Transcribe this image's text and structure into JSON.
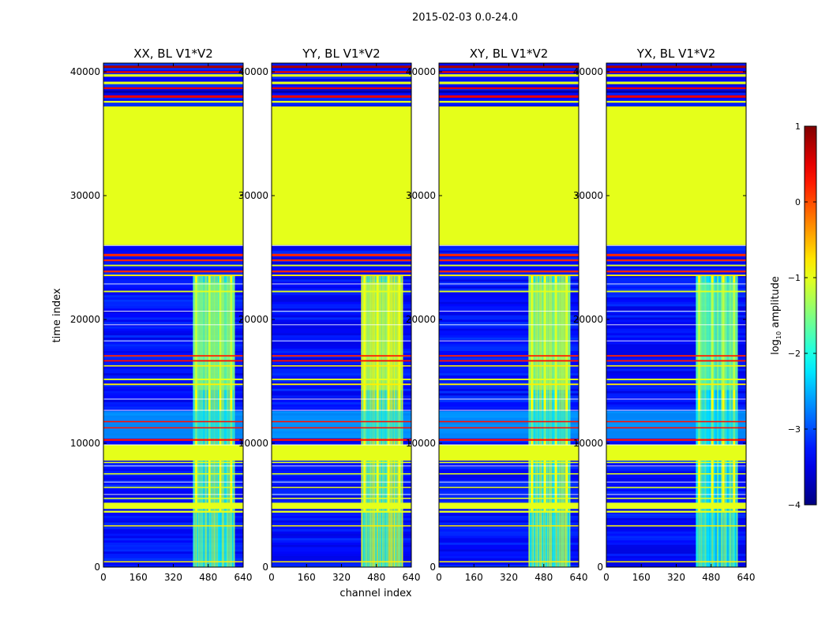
{
  "figure_title": "2015-02-03 0.0-24.0",
  "chart_data": {
    "type": "heatmap",
    "suptitle": "2015-02-03 0.0-24.0",
    "xlabel": "channel index",
    "ylabel": "time index",
    "xlim": [
      0,
      640
    ],
    "ylim": [
      0,
      40700
    ],
    "x_ticks": [
      0,
      160,
      320,
      480,
      640
    ],
    "y_ticks": [
      0,
      10000,
      20000,
      30000,
      40000
    ],
    "panels": [
      {
        "title": "XX, BL V1*V2",
        "rfi_band": [
          410,
          600
        ],
        "band_level": -1.8
      },
      {
        "title": "YY, BL V1*V2",
        "rfi_band": [
          410,
          600
        ],
        "band_level": -1.4
      },
      {
        "title": "XY, BL V1*V2",
        "rfi_band": [
          410,
          600
        ],
        "band_level": -1.6
      },
      {
        "title": "YX, BL V1*V2",
        "rfi_band": [
          410,
          600
        ],
        "band_level": -1.9
      }
    ],
    "background_level": -3.3,
    "flag_level": -1.0,
    "regions": [
      {
        "t": [
          26000,
          37200
        ],
        "kind": "uniform",
        "level": -1.0
      },
      {
        "t": [
          8600,
          9900
        ],
        "kind": "uniform",
        "level": -1.0
      },
      {
        "t": [
          4700,
          5200
        ],
        "kind": "uniform",
        "level": -1.0
      },
      {
        "t": [
          10400,
          12600
        ],
        "kind": "noisy",
        "level": -2.3
      }
    ],
    "bands": [
      {
        "t": 40300,
        "h": 200,
        "level": 0.8
      },
      {
        "t": 39900,
        "h": 150,
        "level": 0.5
      },
      {
        "t": 39600,
        "h": 200,
        "level": -1.0
      },
      {
        "t": 39000,
        "h": 200,
        "level": -1.0
      },
      {
        "t": 38600,
        "h": 150,
        "level": 0.5
      },
      {
        "t": 38300,
        "h": 200,
        "level": -3.8
      },
      {
        "t": 37900,
        "h": 200,
        "level": 0.5
      },
      {
        "t": 37500,
        "h": 150,
        "level": -1.0
      },
      {
        "t": 25100,
        "h": 200,
        "level": 0.2
      },
      {
        "t": 24700,
        "h": 150,
        "level": 0.2
      },
      {
        "t": 24300,
        "h": 120,
        "level": -1.0
      },
      {
        "t": 23800,
        "h": 150,
        "level": 0.2
      },
      {
        "t": 23500,
        "h": 120,
        "level": -0.8
      },
      {
        "t": 22200,
        "h": 120,
        "level": -1.0
      },
      {
        "t": 17000,
        "h": 120,
        "level": 0.2
      },
      {
        "t": 16600,
        "h": 120,
        "level": 0.3
      },
      {
        "t": 16200,
        "h": 100,
        "level": -0.8
      },
      {
        "t": 15100,
        "h": 120,
        "level": -1.0
      },
      {
        "t": 14700,
        "h": 120,
        "level": -0.8
      },
      {
        "t": 11700,
        "h": 100,
        "level": 0.3
      },
      {
        "t": 11200,
        "h": 100,
        "level": 0.3
      },
      {
        "t": 10200,
        "h": 150,
        "level": 0.3
      },
      {
        "t": 8400,
        "h": 100,
        "level": -1.0
      },
      {
        "t": 7500,
        "h": 80,
        "level": -1.0
      },
      {
        "t": 6400,
        "h": 80,
        "level": -1.0
      },
      {
        "t": 5500,
        "h": 100,
        "level": -1.0
      },
      {
        "t": 4400,
        "h": 150,
        "level": -1.0
      },
      {
        "t": 3300,
        "h": 80,
        "level": -0.8
      },
      {
        "t": 400,
        "h": 80,
        "level": -0.8
      }
    ],
    "colorbar": {
      "label": "log",
      "label_sub": "10",
      "label_rest": " amplitude",
      "range": [
        -4,
        1
      ],
      "ticks": [
        1,
        0,
        -1,
        -2,
        -3,
        -4
      ],
      "tick_labels": [
        "1",
        "0",
        "−1",
        "−2",
        "−3",
        "−4"
      ],
      "colormap": "jet"
    }
  }
}
